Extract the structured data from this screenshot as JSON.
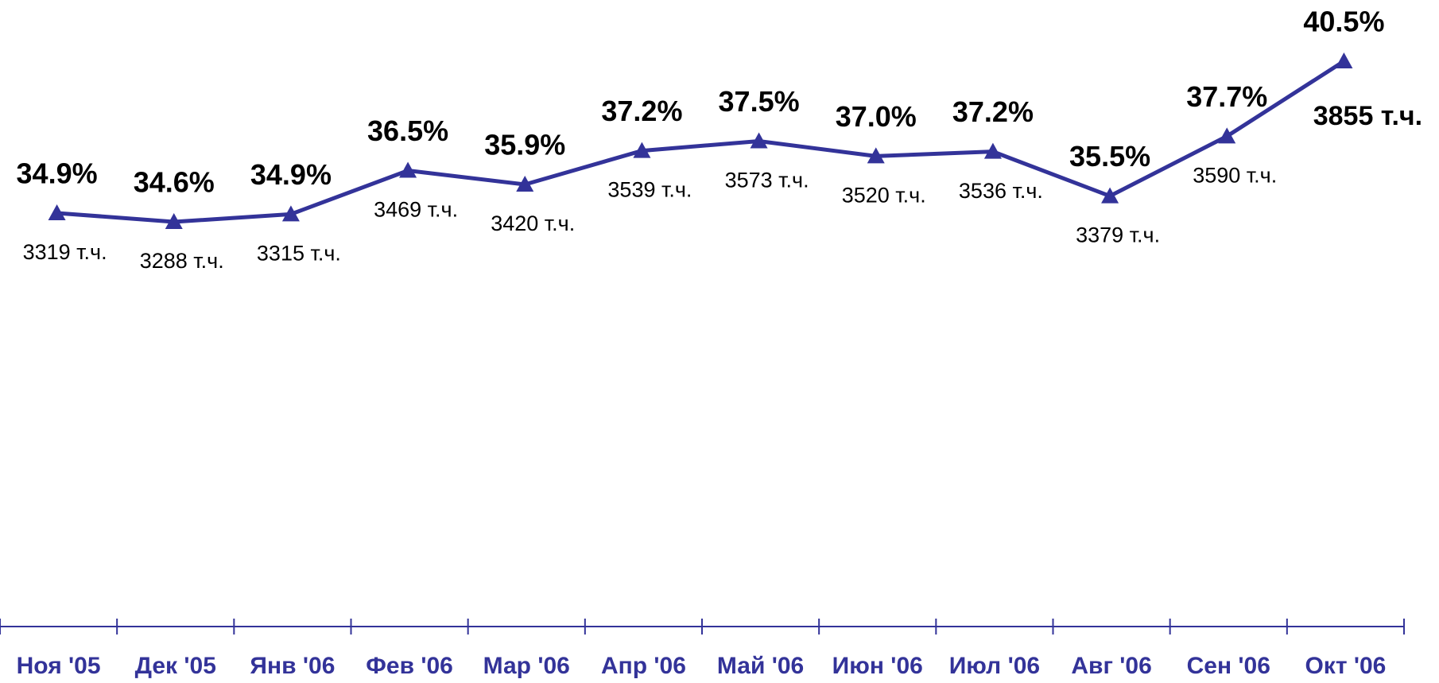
{
  "chart_data": {
    "type": "line",
    "categories": [
      "Ноя '05",
      "Дек '05",
      "Янв '06",
      "Фев '06",
      "Мар '06",
      "Апр '06",
      "Май '06",
      "Июн '06",
      "Июл '06",
      "Авг '06",
      "Сен '06",
      "Окт '06"
    ],
    "values": [
      3319,
      3288,
      3315,
      3469,
      3420,
      3539,
      3573,
      3520,
      3536,
      3379,
      3590,
      3855
    ],
    "value_labels": [
      "3319 т.ч.",
      "3288 т.ч.",
      "3315 т.ч.",
      "3469 т.ч.",
      "3420 т.ч.",
      "3539 т.ч.",
      "3573 т.ч.",
      "3520 т.ч.",
      "3536 т.ч.",
      "3379 т.ч.",
      "3590 т.ч.",
      "3855 т.ч."
    ],
    "percent_values": [
      34.9,
      34.6,
      34.9,
      36.5,
      35.9,
      37.2,
      37.5,
      37.0,
      37.2,
      35.5,
      37.7,
      40.5
    ],
    "percent_labels": [
      "34.9%",
      "34.6%",
      "34.9%",
      "36.5%",
      "35.9%",
      "37.2%",
      "37.5%",
      "37.0%",
      "37.2%",
      "35.5%",
      "37.7%",
      "40.5%"
    ],
    "color": "#333399",
    "highlight_color": "#d42fd4"
  }
}
